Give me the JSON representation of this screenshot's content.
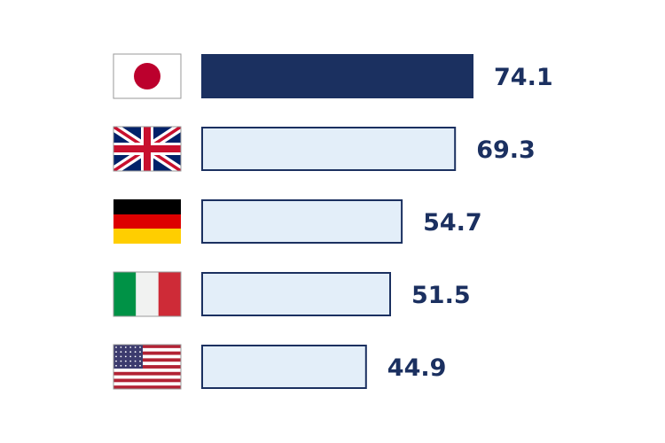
{
  "chart_data": {
    "type": "bar",
    "orientation": "horizontal",
    "title": "",
    "xlabel": "",
    "ylabel": "",
    "xlim": [
      0,
      74.1
    ],
    "grid": false,
    "legend": "none",
    "categories": [
      "Japan",
      "United Kingdom",
      "Germany",
      "Italy",
      "United States"
    ],
    "category_icons": [
      "japan-flag-icon",
      "uk-flag-icon",
      "germany-flag-icon",
      "italy-flag-icon",
      "usa-flag-icon"
    ],
    "values": [
      74.1,
      69.3,
      54.7,
      51.5,
      44.9
    ],
    "value_labels": [
      "74.1",
      "69.3",
      "54.7",
      "51.5",
      "44.9"
    ],
    "highlighted_index": 0
  },
  "colors": {
    "highlight_fill": "#1b3060",
    "bar_fill": "#e3eef9",
    "bar_stroke": "#1b3060",
    "label_color": "#1b3060"
  }
}
